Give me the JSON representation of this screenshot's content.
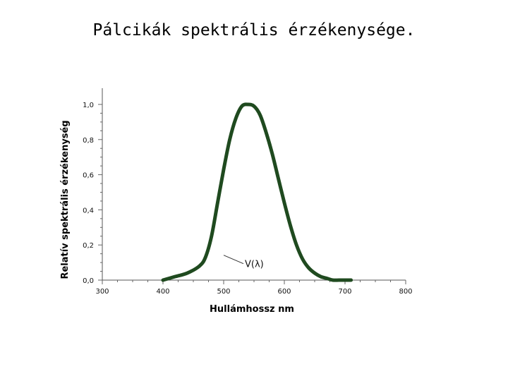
{
  "chart_data": {
    "type": "line",
    "title": "Pálcikák spektrális érzékenysége.",
    "xlabel": "Hullámhossz  nm",
    "ylabel": "Relatív spektrális érzékenység",
    "xlim": [
      300,
      800
    ],
    "ylim": [
      0,
      1.0
    ],
    "xticks": [
      "300",
      "400",
      "500",
      "600",
      "700",
      "800"
    ],
    "yticks": [
      "0,0",
      "0,2",
      "0,4",
      "0,6",
      "0,8",
      "1,0"
    ],
    "grid": false,
    "series": [
      {
        "name": "V(λ)",
        "color": "#1f4a1f",
        "x": [
          400,
          420,
          440,
          460,
          470,
          480,
          490,
          500,
          510,
          520,
          530,
          540,
          550,
          560,
          570,
          580,
          590,
          600,
          610,
          620,
          630,
          640,
          650,
          660,
          670,
          680,
          690,
          700,
          710
        ],
        "y": [
          0.0,
          0.02,
          0.04,
          0.08,
          0.13,
          0.25,
          0.44,
          0.63,
          0.8,
          0.92,
          0.99,
          1.0,
          0.99,
          0.94,
          0.84,
          0.72,
          0.58,
          0.44,
          0.31,
          0.2,
          0.12,
          0.07,
          0.04,
          0.02,
          0.01,
          0.0,
          0.0,
          0.0,
          0.0
        ]
      }
    ],
    "annotation": {
      "text": "V(λ)",
      "x": 500,
      "y": 0.15
    }
  }
}
